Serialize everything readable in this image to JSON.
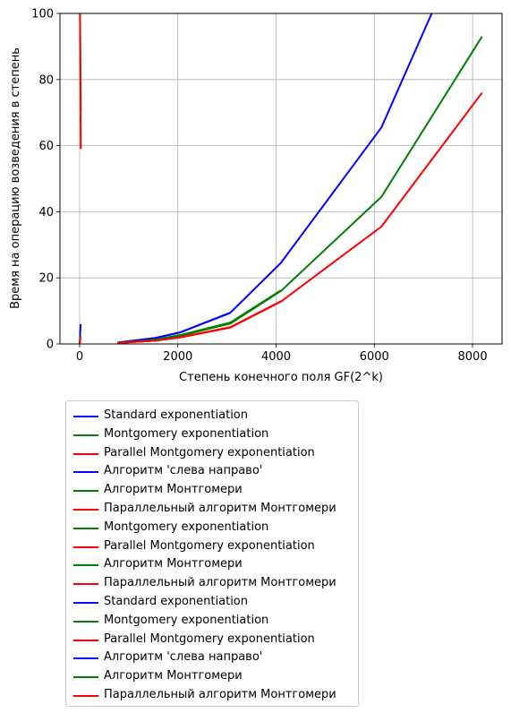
{
  "chart_data": {
    "type": "line",
    "title": "",
    "xlabel": "Степень конечного поля GF(2^k)",
    "ylabel": "Время на операцию возведения в степень",
    "xlim": [
      -400,
      8600
    ],
    "ylim": [
      0,
      100
    ],
    "xticks": [
      0,
      2000,
      4000,
      6000,
      8000
    ],
    "yticks": [
      0,
      20,
      40,
      60,
      80,
      100
    ],
    "grid": true,
    "legend_placement": "below plot",
    "series": [
      {
        "name": "Standard exponentiation",
        "color": "#0000ff",
        "points": [
          [
            0,
            0.2
          ],
          [
            3,
            0.6
          ],
          [
            7,
            1.5
          ],
          [
            10,
            3.0
          ],
          [
            20,
            6.0
          ]
        ]
      },
      {
        "name": "Montgomery exponentiation",
        "color": "#008000",
        "points": [
          [
            0,
            0.1
          ],
          [
            3,
            0.3
          ],
          [
            7,
            0.8
          ],
          [
            10,
            1.5
          ],
          [
            20,
            2.5
          ]
        ]
      },
      {
        "name": "Parallel Montgomery exponentiation",
        "color": "#ff0000",
        "points": [
          [
            0,
            0.1
          ],
          [
            3,
            0.2
          ],
          [
            7,
            0.5
          ],
          [
            10,
            1.0
          ],
          [
            20,
            2.0
          ]
        ]
      },
      {
        "name": "Алгоритм 'слева направо'",
        "color": "#0000ff",
        "points": [
          [
            0,
            100
          ],
          [
            4,
            100
          ],
          [
            8,
            100
          ],
          [
            12,
            100
          ]
        ]
      },
      {
        "name": "Алгоритм Монтгомери",
        "color": "#008000",
        "points": [
          [
            0,
            100
          ],
          [
            8,
            100
          ],
          [
            16,
            85
          ],
          [
            24,
            70.5
          ]
        ]
      },
      {
        "name": "Параллельный алгоритм Монтгомери",
        "color": "#ff0000",
        "points": [
          [
            0,
            100
          ],
          [
            8,
            100
          ],
          [
            16,
            80
          ],
          [
            24,
            59
          ]
        ]
      },
      {
        "name": "Montgomery exponentiation",
        "color": "#008000",
        "points": [
          [
            768,
            0.3
          ],
          [
            1536,
            1.2
          ],
          [
            2048,
            2.5
          ],
          [
            3072,
            6.2
          ],
          [
            4096,
            16
          ],
          [
            6144,
            44.5
          ],
          [
            8192,
            93
          ]
        ]
      },
      {
        "name": "Parallel Montgomery exponentiation",
        "color": "#ff0000",
        "points": [
          [
            768,
            0.3
          ],
          [
            1536,
            1.0
          ],
          [
            2048,
            2.0
          ],
          [
            3072,
            5.0
          ],
          [
            4096,
            12.8
          ],
          [
            6144,
            35.5
          ],
          [
            8192,
            76
          ]
        ]
      },
      {
        "name": "Алгоритм Монтгомери",
        "color": "#008000",
        "points": [
          [
            768,
            0.3
          ],
          [
            1536,
            1.3
          ],
          [
            2048,
            2.7
          ],
          [
            3072,
            6.5
          ],
          [
            4096,
            16.2
          ]
        ]
      },
      {
        "name": "Параллельный алгоритм Монтгомери",
        "color": "#ff0000",
        "points": [
          [
            768,
            0.3
          ],
          [
            1536,
            1.0
          ],
          [
            2048,
            2.0
          ],
          [
            3072,
            5.1
          ],
          [
            4096,
            12.9
          ]
        ]
      },
      {
        "name": "Standard exponentiation",
        "color": "#0000ff",
        "points": [
          [
            768,
            0.4
          ],
          [
            1536,
            1.8
          ],
          [
            2048,
            3.5
          ],
          [
            3072,
            9.5
          ],
          [
            4096,
            24.5
          ],
          [
            6144,
            65.5
          ],
          [
            7168,
            100
          ]
        ]
      },
      {
        "name": "Montgomery exponentiation",
        "color": "#008000",
        "points": [
          [
            768,
            0.3
          ],
          [
            1536,
            1.2
          ],
          [
            2048,
            2.5
          ],
          [
            3072,
            6.2
          ]
        ]
      },
      {
        "name": "Parallel Montgomery exponentiation",
        "color": "#ff0000",
        "points": [
          [
            768,
            0.3
          ],
          [
            1536,
            1.0
          ],
          [
            2048,
            2.0
          ],
          [
            3072,
            5.0
          ]
        ]
      },
      {
        "name": "Алгоритм 'слева направо'",
        "color": "#0000ff",
        "points": [
          [
            768,
            0.4
          ],
          [
            1536,
            1.8
          ],
          [
            2048,
            3.5
          ],
          [
            3072,
            9.4
          ]
        ]
      },
      {
        "name": "Алгоритм Монтгомери",
        "color": "#008000",
        "points": [
          [
            768,
            0.3
          ],
          [
            1536,
            1.3
          ],
          [
            2048,
            2.6
          ]
        ]
      },
      {
        "name": "Параллельный алгоритм Монтгомери",
        "color": "#ff0000",
        "points": [
          [
            768,
            0.3
          ],
          [
            1536,
            1.0
          ],
          [
            2048,
            2.0
          ]
        ]
      }
    ]
  }
}
